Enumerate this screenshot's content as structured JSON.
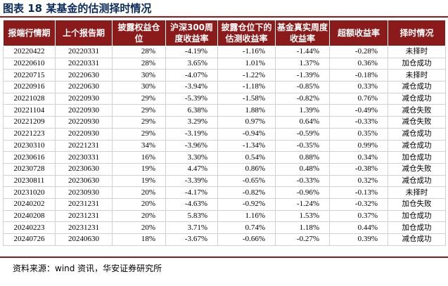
{
  "title": "图表 18 某基金的估测择时情况",
  "table": {
    "headers": [
      "报端行情期",
      "上个报告期",
      "披露权益仓位",
      "沪深300周度收益率",
      "披露仓位下的估测收益率",
      "基金真实周度收益率",
      "超额收益率",
      "择时情况"
    ],
    "rows": [
      [
        "20220422",
        "20220331",
        "28%",
        "-4.19%",
        "-1.16%",
        "-1.44%",
        "-0.28%",
        "未择时"
      ],
      [
        "20220610",
        "20220331",
        "28%",
        "3.65%",
        "1.01%",
        "1.37%",
        "0.36%",
        "加仓成功"
      ],
      [
        "20220715",
        "20220630",
        "30%",
        "-4.07%",
        "-1.22%",
        "-1.39%",
        "-0.18%",
        "未择时"
      ],
      [
        "20220916",
        "20220630",
        "30%",
        "-3.94%",
        "-1.18%",
        "-0.85%",
        "0.33%",
        "减仓成功"
      ],
      [
        "20221028",
        "20220930",
        "29%",
        "-5.39%",
        "-1.58%",
        "-0.82%",
        "0.76%",
        "减仓成功"
      ],
      [
        "20221104",
        "20220930",
        "29%",
        "6.38%",
        "1.88%",
        "1.39%",
        "-0.49%",
        "减仓失败"
      ],
      [
        "20221209",
        "20220930",
        "29%",
        "3.29%",
        "0.97%",
        "0.64%",
        "-0.33%",
        "减仓失败"
      ],
      [
        "20221223",
        "20220930",
        "29%",
        "-3.19%",
        "-0.94%",
        "-0.59%",
        "0.35%",
        "减仓成功"
      ],
      [
        "20230310",
        "20221231",
        "34%",
        "-3.96%",
        "-1.34%",
        "-0.35%",
        "0.99%",
        "减仓成功"
      ],
      [
        "20230616",
        "20230331",
        "16%",
        "3.30%",
        "0.54%",
        "0.88%",
        "0.34%",
        "加仓成功"
      ],
      [
        "20230728",
        "20230630",
        "19%",
        "4.47%",
        "0.86%",
        "0.48%",
        "-0.38%",
        "减仓失败"
      ],
      [
        "20230811",
        "20230630",
        "19%",
        "-3.39%",
        "-0.65%",
        "-0.33%",
        "0.32%",
        "减仓成功"
      ],
      [
        "20231020",
        "20230930",
        "20%",
        "-4.17%",
        "-0.82%",
        "-0.96%",
        "-0.13%",
        "未择时"
      ],
      [
        "20240202",
        "20231231",
        "20%",
        "-4.63%",
        "-0.92%",
        "-1.24%",
        "-0.32%",
        "加仓失败"
      ],
      [
        "20240208",
        "20231231",
        "20%",
        "5.83%",
        "1.16%",
        "1.53%",
        "0.37%",
        "加仓成功"
      ],
      [
        "20240223",
        "20231231",
        "20%",
        "3.71%",
        "0.74%",
        "1.18%",
        "0.44%",
        "加仓成功"
      ],
      [
        "20240726",
        "20240630",
        "18%",
        "-3.67%",
        "-0.66%",
        "-0.27%",
        "0.39%",
        "减仓成功"
      ]
    ]
  },
  "source": "资料来源：wind 资讯，华安证券研究所"
}
